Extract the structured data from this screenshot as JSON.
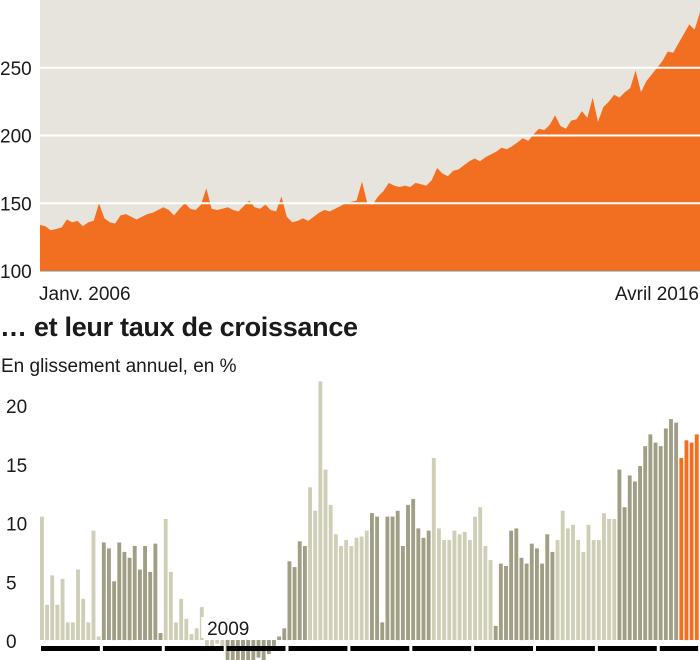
{
  "colors": {
    "panel_background": "#e6e4dc",
    "orange": "#f26f21",
    "bar_light": "#cfceb6",
    "bar_dark": "#a09e84",
    "gridline": "#ffffff",
    "text": "#1a1a1a",
    "year_segment": "#000000"
  },
  "chart_data": [
    {
      "type": "area",
      "ylim": [
        100,
        300
      ],
      "yticks": [
        100,
        150,
        200,
        250
      ],
      "grid": true,
      "x_start_label": "Janv. 2006",
      "x_end_label": "Avril 2016",
      "months": 124,
      "values": [
        134,
        133,
        130,
        131,
        132,
        138,
        136,
        137,
        133,
        136,
        137,
        150,
        139,
        136,
        135,
        141,
        142,
        140,
        138,
        140,
        142,
        143,
        145,
        147,
        145,
        141,
        146,
        150,
        146,
        145,
        149,
        161,
        146,
        145,
        146,
        147,
        145,
        144,
        148,
        152,
        147,
        146,
        149,
        145,
        144,
        155,
        140,
        136,
        137,
        139,
        137,
        140,
        143,
        145,
        144,
        146,
        148,
        150,
        151,
        152,
        166,
        150,
        149,
        155,
        159,
        165,
        163,
        162,
        163,
        162,
        165,
        164,
        163,
        167,
        176,
        172,
        170,
        174,
        175,
        178,
        181,
        183,
        181,
        184,
        186,
        188,
        191,
        190,
        192,
        195,
        198,
        196,
        201,
        205,
        204,
        208,
        215,
        207,
        205,
        211,
        212,
        218,
        213,
        228,
        210,
        221,
        225,
        230,
        228,
        232,
        235,
        248,
        232,
        240,
        245,
        250,
        255,
        262,
        261,
        268,
        275,
        282,
        278,
        291
      ]
    },
    {
      "type": "bar",
      "title": "… et leur taux de croissance",
      "subtitle": "En glissement annuel, en %",
      "ylim": [
        0,
        20
      ],
      "yticks": [
        0,
        5,
        10,
        15,
        20
      ],
      "grid": false,
      "annotation": "2009",
      "bars": [
        {
          "value": 10.5,
          "shade": "light"
        },
        {
          "value": 3.0,
          "shade": "light"
        },
        {
          "value": 5.5,
          "shade": "light"
        },
        {
          "value": 3.0,
          "shade": "light"
        },
        {
          "value": 5.2,
          "shade": "light"
        },
        {
          "value": 1.5,
          "shade": "light"
        },
        {
          "value": 1.5,
          "shade": "light"
        },
        {
          "value": 6.0,
          "shade": "light"
        },
        {
          "value": 3.5,
          "shade": "light"
        },
        {
          "value": 1.5,
          "shade": "light"
        },
        {
          "value": 9.3,
          "shade": "light"
        },
        {
          "value": 0.3,
          "shade": "light"
        },
        {
          "value": 8.3,
          "shade": "dark"
        },
        {
          "value": 7.8,
          "shade": "dark"
        },
        {
          "value": 5.0,
          "shade": "dark"
        },
        {
          "value": 8.3,
          "shade": "dark"
        },
        {
          "value": 7.5,
          "shade": "dark"
        },
        {
          "value": 7.0,
          "shade": "dark"
        },
        {
          "value": 8.0,
          "shade": "dark"
        },
        {
          "value": 6.0,
          "shade": "dark"
        },
        {
          "value": 8.0,
          "shade": "dark"
        },
        {
          "value": 5.8,
          "shade": "dark"
        },
        {
          "value": 8.2,
          "shade": "dark"
        },
        {
          "value": 0.6,
          "shade": "dark"
        },
        {
          "value": 10.3,
          "shade": "light"
        },
        {
          "value": 5.8,
          "shade": "light"
        },
        {
          "value": 1.5,
          "shade": "light"
        },
        {
          "value": 3.5,
          "shade": "light"
        },
        {
          "value": 1.8,
          "shade": "light"
        },
        {
          "value": 0.5,
          "shade": "light"
        },
        {
          "value": 1.0,
          "shade": "light"
        },
        {
          "value": 2.8,
          "shade": "light"
        },
        {
          "value": -0.5,
          "shade": "light"
        },
        {
          "value": -0.8,
          "shade": "light"
        },
        {
          "value": -0.3,
          "shade": "light"
        },
        {
          "value": -0.5,
          "shade": "light"
        },
        {
          "value": -2.0,
          "shade": "dark"
        },
        {
          "value": -2.3,
          "shade": "dark"
        },
        {
          "value": -1.8,
          "shade": "dark"
        },
        {
          "value": -2.3,
          "shade": "dark"
        },
        {
          "value": -2.0,
          "shade": "dark"
        },
        {
          "value": -2.0,
          "shade": "dark"
        },
        {
          "value": -1.5,
          "shade": "dark"
        },
        {
          "value": -1.8,
          "shade": "dark"
        },
        {
          "value": -1.2,
          "shade": "dark"
        },
        {
          "value": -0.5,
          "shade": "dark"
        },
        {
          "value": 0.3,
          "shade": "dark"
        },
        {
          "value": 1.0,
          "shade": "dark"
        },
        {
          "value": 6.7,
          "shade": "dark"
        },
        {
          "value": 6.2,
          "shade": "dark"
        },
        {
          "value": 8.4,
          "shade": "dark"
        },
        {
          "value": 8.0,
          "shade": "dark"
        },
        {
          "value": 13.0,
          "shade": "light"
        },
        {
          "value": 11.0,
          "shade": "light"
        },
        {
          "value": 22.0,
          "shade": "light"
        },
        {
          "value": 14.5,
          "shade": "light"
        },
        {
          "value": 11.5,
          "shade": "light"
        },
        {
          "value": 9.0,
          "shade": "light"
        },
        {
          "value": 8.0,
          "shade": "light"
        },
        {
          "value": 8.5,
          "shade": "light"
        },
        {
          "value": 8.0,
          "shade": "light"
        },
        {
          "value": 8.7,
          "shade": "light"
        },
        {
          "value": 8.8,
          "shade": "light"
        },
        {
          "value": 9.3,
          "shade": "light"
        },
        {
          "value": 10.8,
          "shade": "dark"
        },
        {
          "value": 10.5,
          "shade": "dark"
        },
        {
          "value": 1.5,
          "shade": "dark"
        },
        {
          "value": 10.5,
          "shade": "dark"
        },
        {
          "value": 10.5,
          "shade": "dark"
        },
        {
          "value": 11.0,
          "shade": "dark"
        },
        {
          "value": 8.0,
          "shade": "dark"
        },
        {
          "value": 11.5,
          "shade": "dark"
        },
        {
          "value": 12.0,
          "shade": "dark"
        },
        {
          "value": 9.5,
          "shade": "dark"
        },
        {
          "value": 8.7,
          "shade": "dark"
        },
        {
          "value": 9.3,
          "shade": "dark"
        },
        {
          "value": 15.5,
          "shade": "light"
        },
        {
          "value": 9.5,
          "shade": "light"
        },
        {
          "value": 8.5,
          "shade": "light"
        },
        {
          "value": 8.5,
          "shade": "light"
        },
        {
          "value": 9.3,
          "shade": "light"
        },
        {
          "value": 9.0,
          "shade": "light"
        },
        {
          "value": 9.2,
          "shade": "light"
        },
        {
          "value": 8.5,
          "shade": "light"
        },
        {
          "value": 10.5,
          "shade": "light"
        },
        {
          "value": 11.3,
          "shade": "light"
        },
        {
          "value": 8.0,
          "shade": "light"
        },
        {
          "value": 6.8,
          "shade": "light"
        },
        {
          "value": 1.2,
          "shade": "dark"
        },
        {
          "value": 6.5,
          "shade": "dark"
        },
        {
          "value": 6.3,
          "shade": "dark"
        },
        {
          "value": 9.3,
          "shade": "dark"
        },
        {
          "value": 9.5,
          "shade": "dark"
        },
        {
          "value": 7.0,
          "shade": "dark"
        },
        {
          "value": 6.5,
          "shade": "dark"
        },
        {
          "value": 8.2,
          "shade": "dark"
        },
        {
          "value": 7.8,
          "shade": "dark"
        },
        {
          "value": 6.5,
          "shade": "dark"
        },
        {
          "value": 9.0,
          "shade": "dark"
        },
        {
          "value": 7.5,
          "shade": "dark"
        },
        {
          "value": 8.5,
          "shade": "light"
        },
        {
          "value": 11.0,
          "shade": "light"
        },
        {
          "value": 9.5,
          "shade": "light"
        },
        {
          "value": 9.8,
          "shade": "light"
        },
        {
          "value": 8.5,
          "shade": "light"
        },
        {
          "value": 7.5,
          "shade": "light"
        },
        {
          "value": 9.8,
          "shade": "light"
        },
        {
          "value": 8.5,
          "shade": "light"
        },
        {
          "value": 8.5,
          "shade": "light"
        },
        {
          "value": 10.8,
          "shade": "light"
        },
        {
          "value": 10.3,
          "shade": "light"
        },
        {
          "value": 10.3,
          "shade": "light"
        },
        {
          "value": 14.5,
          "shade": "dark"
        },
        {
          "value": 11.3,
          "shade": "dark"
        },
        {
          "value": 14.0,
          "shade": "dark"
        },
        {
          "value": 13.5,
          "shade": "dark"
        },
        {
          "value": 14.8,
          "shade": "dark"
        },
        {
          "value": 16.5,
          "shade": "dark"
        },
        {
          "value": 17.5,
          "shade": "dark"
        },
        {
          "value": 16.8,
          "shade": "dark"
        },
        {
          "value": 16.5,
          "shade": "dark"
        },
        {
          "value": 18.0,
          "shade": "dark"
        },
        {
          "value": 18.8,
          "shade": "dark"
        },
        {
          "value": 18.5,
          "shade": "dark"
        },
        {
          "value": 15.5,
          "shade": "orange"
        },
        {
          "value": 17.0,
          "shade": "orange"
        },
        {
          "value": 16.8,
          "shade": "orange"
        },
        {
          "value": 17.5,
          "shade": "orange"
        }
      ]
    }
  ]
}
